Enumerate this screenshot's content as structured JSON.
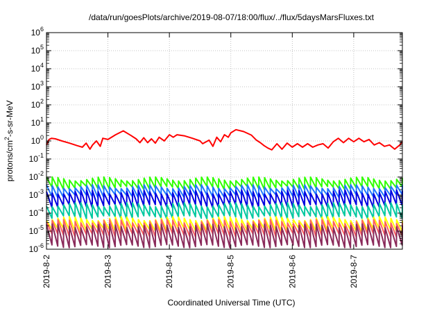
{
  "chart_data": {
    "type": "line",
    "title": "/data/run/goesPlots/archive/2019-08-07/18:00/flux/../flux/5daysMarsFluxes.txt",
    "xlabel": "Coordinated Universal Time (UTC)",
    "ylabel_prefix": "protons/cm",
    "ylabel_sup": "2",
    "ylabel_suffix": "-s-sr-MeV",
    "yscale": "log",
    "ylim": [
      1e-06,
      1000000.0
    ],
    "xlim": [
      "2019-08-02T00:00",
      "2019-08-07T19:00"
    ],
    "grid": true,
    "legend": "none",
    "x_ticks": [
      "2019-8-2",
      "2019-8-3",
      "2019-8-4",
      "2019-8-5",
      "2019-8-6",
      "2019-8-7"
    ],
    "y_ticks": [
      {
        "base": "10",
        "exp": "-6"
      },
      {
        "base": "10",
        "exp": "-5"
      },
      {
        "base": "10",
        "exp": "-4"
      },
      {
        "base": "10",
        "exp": "-3"
      },
      {
        "base": "10",
        "exp": "-2"
      },
      {
        "base": "10",
        "exp": "-1"
      },
      {
        "base": "10",
        "exp": "0"
      },
      {
        "base": "10",
        "exp": "1"
      },
      {
        "base": "10",
        "exp": "2"
      },
      {
        "base": "10",
        "exp": "3"
      },
      {
        "base": "10",
        "exp": "4"
      },
      {
        "base": "10",
        "exp": "5"
      },
      {
        "base": "10",
        "exp": "6"
      }
    ],
    "series": [
      {
        "color": "#ff0000",
        "x": [
          "2019-08-02T00:00",
          "2019-08-02T01:00",
          "2019-08-02T02:00",
          "2019-08-02T03:30",
          "2019-08-02T06:00",
          "2019-08-02T09:00",
          "2019-08-02T12:00",
          "2019-08-02T14:00",
          "2019-08-02T15:30",
          "2019-08-02T17:00",
          "2019-08-02T18:00",
          "2019-08-02T19:30",
          "2019-08-02T21:00",
          "2019-08-02T22:00",
          "2019-08-03T00:00",
          "2019-08-03T03:00",
          "2019-08-03T06:00",
          "2019-08-03T09:00",
          "2019-08-03T11:00",
          "2019-08-03T12:30",
          "2019-08-03T14:00",
          "2019-08-03T15:30",
          "2019-08-03T17:00",
          "2019-08-03T18:30",
          "2019-08-03T20:00",
          "2019-08-03T22:00",
          "2019-08-04T00:00",
          "2019-08-04T01:30",
          "2019-08-04T03:00",
          "2019-08-04T06:00",
          "2019-08-04T09:00",
          "2019-08-04T12:00",
          "2019-08-04T13:00",
          "2019-08-04T15:30",
          "2019-08-04T17:00",
          "2019-08-04T18:30",
          "2019-08-04T20:00",
          "2019-08-04T21:30",
          "2019-08-04T23:00",
          "2019-08-05T00:00",
          "2019-08-05T02:00",
          "2019-08-05T05:00",
          "2019-08-05T08:00",
          "2019-08-05T10:00",
          "2019-08-05T11:30",
          "2019-08-05T13:00",
          "2019-08-05T14:30",
          "2019-08-05T16:00",
          "2019-08-05T18:00",
          "2019-08-05T20:00",
          "2019-08-05T22:00",
          "2019-08-06T00:00",
          "2019-08-06T02:00",
          "2019-08-06T04:00",
          "2019-08-06T06:00",
          "2019-08-06T08:00",
          "2019-08-06T10:00",
          "2019-08-06T12:00",
          "2019-08-06T14:00",
          "2019-08-06T16:00",
          "2019-08-06T18:00",
          "2019-08-06T20:00",
          "2019-08-06T22:00",
          "2019-08-07T00:00",
          "2019-08-07T02:00",
          "2019-08-07T04:00",
          "2019-08-07T06:00",
          "2019-08-07T08:00",
          "2019-08-07T10:00",
          "2019-08-07T12:00",
          "2019-08-07T14:00",
          "2019-08-07T16:00",
          "2019-08-07T18:00",
          "2019-08-07T19:00"
        ],
        "y": [
          0.6,
          1.2,
          1.4,
          1.3,
          1.0,
          0.75,
          0.55,
          0.45,
          0.75,
          0.35,
          0.6,
          1.0,
          0.5,
          1.4,
          1.2,
          2.2,
          3.6,
          2.0,
          1.3,
          0.8,
          1.5,
          0.8,
          1.3,
          0.75,
          1.6,
          1.0,
          2.2,
          1.6,
          2.2,
          1.9,
          1.4,
          1.0,
          0.7,
          1.1,
          0.5,
          1.6,
          0.9,
          2.2,
          1.6,
          2.8,
          4.2,
          3.3,
          2.1,
          1.1,
          0.8,
          0.55,
          0.4,
          0.32,
          0.7,
          0.35,
          0.75,
          0.45,
          0.7,
          0.45,
          0.7,
          0.45,
          0.6,
          0.7,
          0.4,
          0.9,
          1.4,
          0.8,
          1.4,
          0.9,
          1.4,
          0.9,
          1.2,
          0.6,
          0.8,
          0.5,
          0.6,
          0.35,
          0.6,
          0.9
        ]
      },
      {
        "color": "#30ff00",
        "x_start": "2019-08-02T00:00",
        "x_end": "2019-08-07T19:00",
        "pattern": "sawtooth",
        "y_high": 0.008,
        "y_low": 0.0025
      },
      {
        "color": "#1f78ff",
        "x_start": "2019-08-02T00:00",
        "x_end": "2019-08-07T19:00",
        "pattern": "sawtooth",
        "y_high": 0.003,
        "y_low": 0.0009
      },
      {
        "color": "#0000e0",
        "x_start": "2019-08-02T00:00",
        "x_end": "2019-08-07T19:00",
        "pattern": "sawtooth",
        "y_high": 0.0015,
        "y_low": 0.00025
      },
      {
        "color": "#00c8a0",
        "x_start": "2019-08-02T00:00",
        "x_end": "2019-08-07T19:00",
        "pattern": "sawtooth",
        "y_high": 0.0003,
        "y_low": 6e-05
      },
      {
        "color": "#ffff00",
        "x_start": "2019-08-02T00:00",
        "x_end": "2019-08-07T19:00",
        "pattern": "sawtooth",
        "y_high": 5e-05,
        "y_low": 1.2e-05
      },
      {
        "color": "#ff6060",
        "x_start": "2019-08-02T00:00",
        "x_end": "2019-08-07T19:00",
        "pattern": "sawtooth",
        "y_high": 3.5e-05,
        "y_low": 6e-06
      },
      {
        "color": "#8a2a5a",
        "x_start": "2019-08-02T00:00",
        "x_end": "2019-08-07T19:00",
        "pattern": "sawtooth",
        "y_high": 2e-05,
        "y_low": 1.5e-06
      }
    ]
  }
}
